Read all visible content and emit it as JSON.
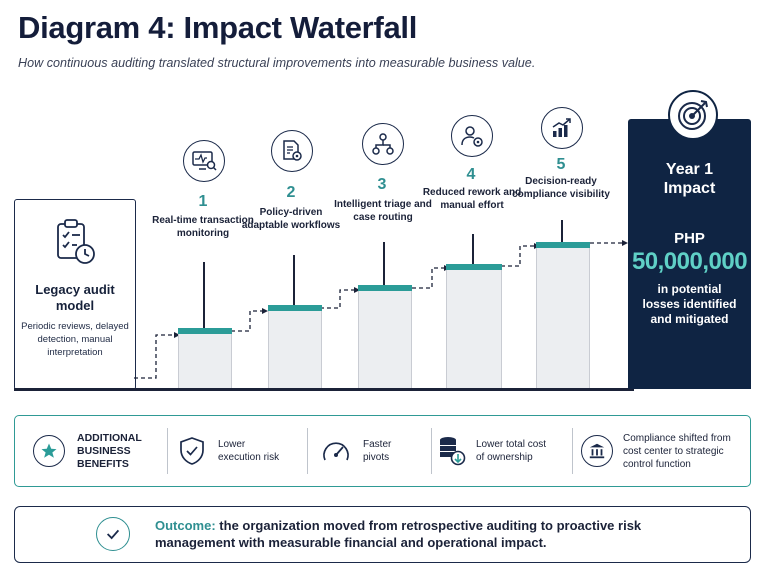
{
  "title": "Diagram 4: Impact Waterfall",
  "subtitle": "How continuous auditing translated structural improvements into measurable business value.",
  "legacy": {
    "icon": "clipboard-clock-icon",
    "title": "Legacy audit model",
    "description": "Periodic reviews, delayed detection, manual interpretation"
  },
  "steps": [
    {
      "number": "1",
      "label": "Real-time transaction monitoring",
      "icon": "monitor-search-icon"
    },
    {
      "number": "2",
      "label": "Policy-driven adaptable workflows",
      "icon": "document-gear-icon"
    },
    {
      "number": "3",
      "label": "Intelligent triage and case routing",
      "icon": "network-routing-icon"
    },
    {
      "number": "4",
      "label": "Reduced rework and manual effort",
      "icon": "person-gear-icon"
    },
    {
      "number": "5",
      "label": "Decision-ready compliance visibility",
      "icon": "chart-growth-icon"
    }
  ],
  "impact": {
    "icon": "target-icon",
    "title": "Year 1 Impact",
    "currency": "PHP",
    "amount": "50,000,000",
    "description": "in potential losses identified and mitigated"
  },
  "benefits": {
    "heading": "ADDITIONAL BUSINESS BENEFITS",
    "heading_icon": "star-icon",
    "items": [
      {
        "text": "Lower execution risk",
        "icon": "shield-check-icon"
      },
      {
        "text": "Faster pivots",
        "icon": "speedometer-icon"
      },
      {
        "text": "Lower total cost of ownership",
        "icon": "coins-down-icon"
      },
      {
        "text": "Compliance shifted from cost center to strategic control function",
        "icon": "institution-icon"
      }
    ]
  },
  "outcome": {
    "label": "Outcome:",
    "text": "the organization moved from retrospective auditing to proactive risk management with measurable financial and operational impact.",
    "icon": "check-circle-icon"
  },
  "colors": {
    "navy": "#0f2443",
    "teal": "#2b9c98",
    "accent_amount": "#5fd0c6"
  }
}
